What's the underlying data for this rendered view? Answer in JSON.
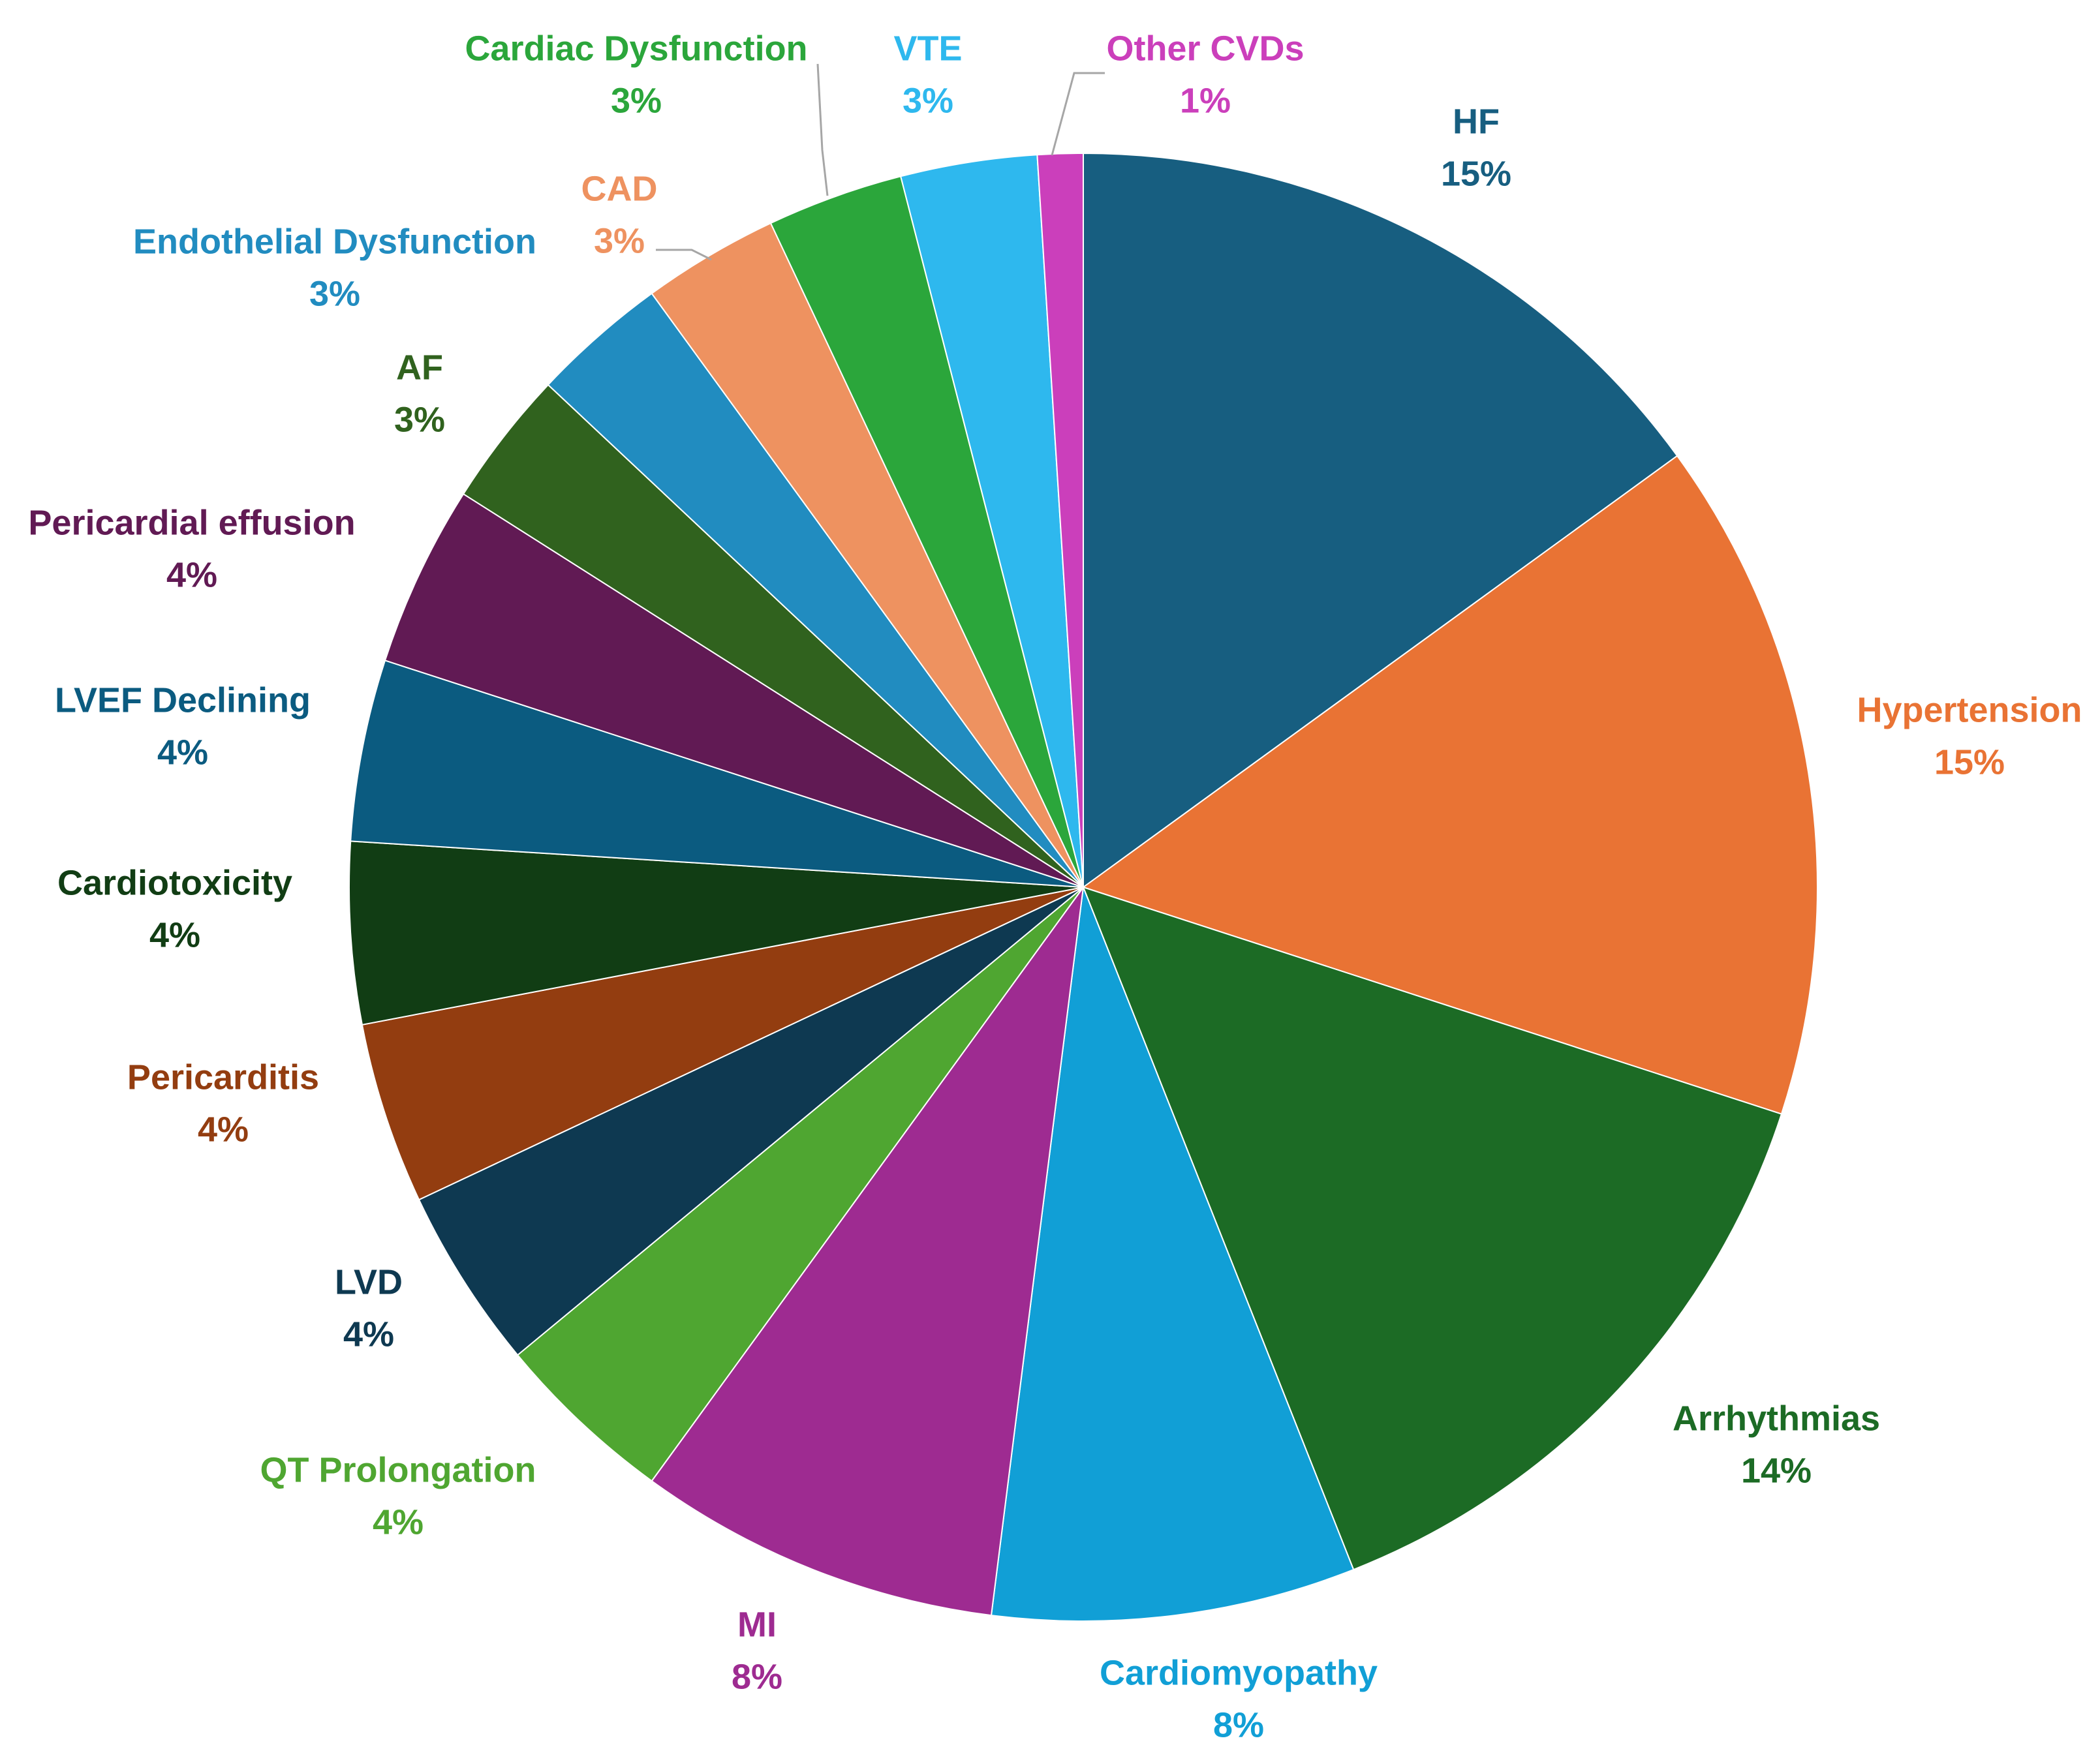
{
  "chart_data": {
    "type": "pie",
    "start_angle_deg": 0,
    "direction": "clockwise",
    "slices": [
      {
        "name": "HF",
        "value": 15,
        "label_value": "15%",
        "color": "#175E80"
      },
      {
        "name": "Hypertension",
        "value": 15,
        "label_value": "15%",
        "color": "#E97334"
      },
      {
        "name": "Arrhythmias",
        "value": 14,
        "label_value": "14%",
        "color": "#1C6B25"
      },
      {
        "name": "Cardiomyopathy",
        "value": 8,
        "label_value": "8%",
        "color": "#119FD6"
      },
      {
        "name": "MI",
        "value": 8,
        "label_value": "8%",
        "color": "#9E2B91"
      },
      {
        "name": "QT Prolongation",
        "value": 4,
        "label_value": "4%",
        "color": "#4FA631"
      },
      {
        "name": "LVD",
        "value": 4,
        "label_value": "4%",
        "color": "#0E3951"
      },
      {
        "name": "Pericarditis",
        "value": 4,
        "label_value": "4%",
        "color": "#933D10"
      },
      {
        "name": "Cardiotoxicity",
        "value": 4,
        "label_value": "4%",
        "color": "#113D14"
      },
      {
        "name": "LVEF Declining",
        "value": 4,
        "label_value": "4%",
        "color": "#0B5B80"
      },
      {
        "name": "Pericardial effusion",
        "value": 4,
        "label_value": "4%",
        "color": "#611A54"
      },
      {
        "name": "AF",
        "value": 3,
        "label_value": "3%",
        "color": "#30621E"
      },
      {
        "name": "Endothelial Dysfunction",
        "value": 3,
        "label_value": "3%",
        "color": "#218CC0"
      },
      {
        "name": "CAD",
        "value": 3,
        "label_value": "3%",
        "color": "#EE9260"
      },
      {
        "name": "Cardiac Dysfunction",
        "value": 3,
        "label_value": "3%",
        "color": "#2BA63B"
      },
      {
        "name": "VTE",
        "value": 3,
        "label_value": "3%",
        "color": "#2EB8EE"
      },
      {
        "name": "Other CVDs",
        "value": 1,
        "label_value": "1%",
        "color": "#CB3FBB"
      }
    ]
  }
}
